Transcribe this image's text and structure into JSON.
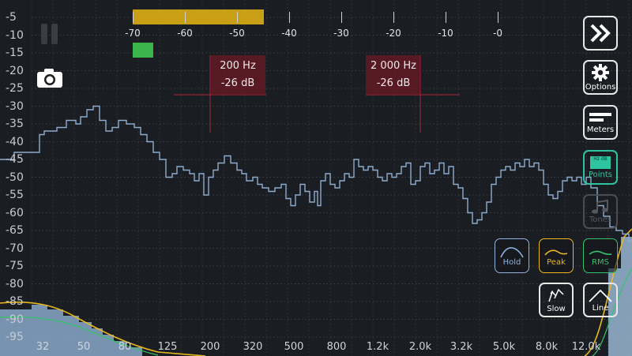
{
  "y_labels": [
    "-5",
    "-10",
    "-15",
    "-20",
    "-25",
    "-30",
    "-35",
    "-40",
    "-45",
    "-50",
    "-55",
    "-60",
    "-65",
    "-70",
    "-75",
    "-80",
    "-85",
    "-90",
    "-95"
  ],
  "x_labels": [
    "32",
    "50",
    "80",
    "125",
    "200",
    "320",
    "500",
    "800",
    "1.2k",
    "2.0k",
    "3.2k",
    "5.0k",
    "8.0k",
    "12.0k"
  ],
  "meter": {
    "ticks": [
      "-70",
      "-60",
      "-50",
      "-40",
      "-30",
      "-20",
      "-10",
      "-0"
    ],
    "level_db": -45
  },
  "markers": [
    {
      "freq": "200 Hz",
      "level": "-26 dB"
    },
    {
      "freq": "2 000 Hz",
      "level": "-26 dB"
    }
  ],
  "buttons": {
    "next": "",
    "options": "Options",
    "meters": "Meters",
    "points": "Points",
    "points_badge": "Hz dB",
    "tones": "Tones",
    "hold": "Hold",
    "peak": "Peak",
    "rms": "RMS",
    "slow": "Slow",
    "line": "Line"
  },
  "colors": {
    "spectrum": "#8eaccc",
    "peak": "#e8b820",
    "rms": "#34c26a",
    "meter_bar": "#c9a015",
    "marker": "#8e1c2a",
    "points_accent": "#2ec4a0"
  }
}
